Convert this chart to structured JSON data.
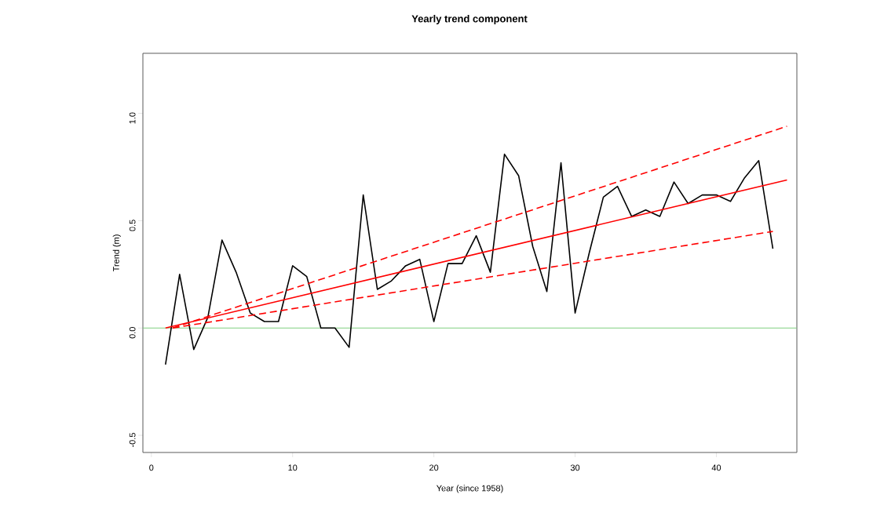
{
  "chart_data": {
    "type": "line",
    "title": "Yearly trend component",
    "xlabel": "Year (since 1958)",
    "ylabel": "Trend (m)",
    "xlim": [
      -0.6,
      45.7
    ],
    "ylim": [
      -0.58,
      1.28
    ],
    "xticks": [
      0,
      10,
      20,
      30,
      40
    ],
    "yticks": [
      {
        "value": -0.5,
        "label": "-0.5"
      },
      {
        "value": 0,
        "label": "0.0"
      },
      {
        "value": 0.5,
        "label": "0.5"
      },
      {
        "value": 1.0,
        "label": "1.0"
      }
    ],
    "ref_lines": [
      {
        "axis": "y",
        "value": 0,
        "color": "#7fcf7f"
      }
    ],
    "series": [
      {
        "color": "#000000",
        "line_style": "solid",
        "x": [
          1,
          2,
          3,
          4,
          5,
          6,
          7,
          8,
          9,
          10,
          11,
          12,
          13,
          14,
          15,
          16,
          17,
          18,
          19,
          20,
          21,
          22,
          23,
          24,
          25,
          26,
          27,
          28,
          29,
          30,
          31,
          32,
          33,
          34,
          35,
          36,
          37,
          38,
          39,
          40,
          41,
          42,
          43,
          44
        ],
        "values": [
          -0.17,
          0.25,
          -0.1,
          0.05,
          0.41,
          0.26,
          0.07,
          0.03,
          0.03,
          0.29,
          0.24,
          0.0,
          0.0,
          -0.09,
          0.62,
          0.18,
          0.22,
          0.29,
          0.32,
          0.03,
          0.3,
          0.3,
          0.43,
          0.26,
          0.81,
          0.71,
          0.38,
          0.17,
          0.77,
          0.07,
          0.35,
          0.61,
          0.66,
          0.52,
          0.55,
          0.52,
          0.68,
          0.58,
          0.62,
          0.62,
          0.59,
          0.7,
          0.78,
          0.37
        ]
      },
      {
        "color": "#ff0000",
        "line_style": "solid",
        "x": [
          1,
          45
        ],
        "values": [
          0,
          0.69
        ]
      },
      {
        "color": "#ff0000",
        "line_style": "dashed",
        "x": [
          1.5,
          45
        ],
        "values": [
          0,
          0.94
        ]
      },
      {
        "color": "#ff0000",
        "line_style": "dashed",
        "x": [
          1.5,
          44
        ],
        "values": [
          0,
          0.45
        ]
      }
    ]
  }
}
